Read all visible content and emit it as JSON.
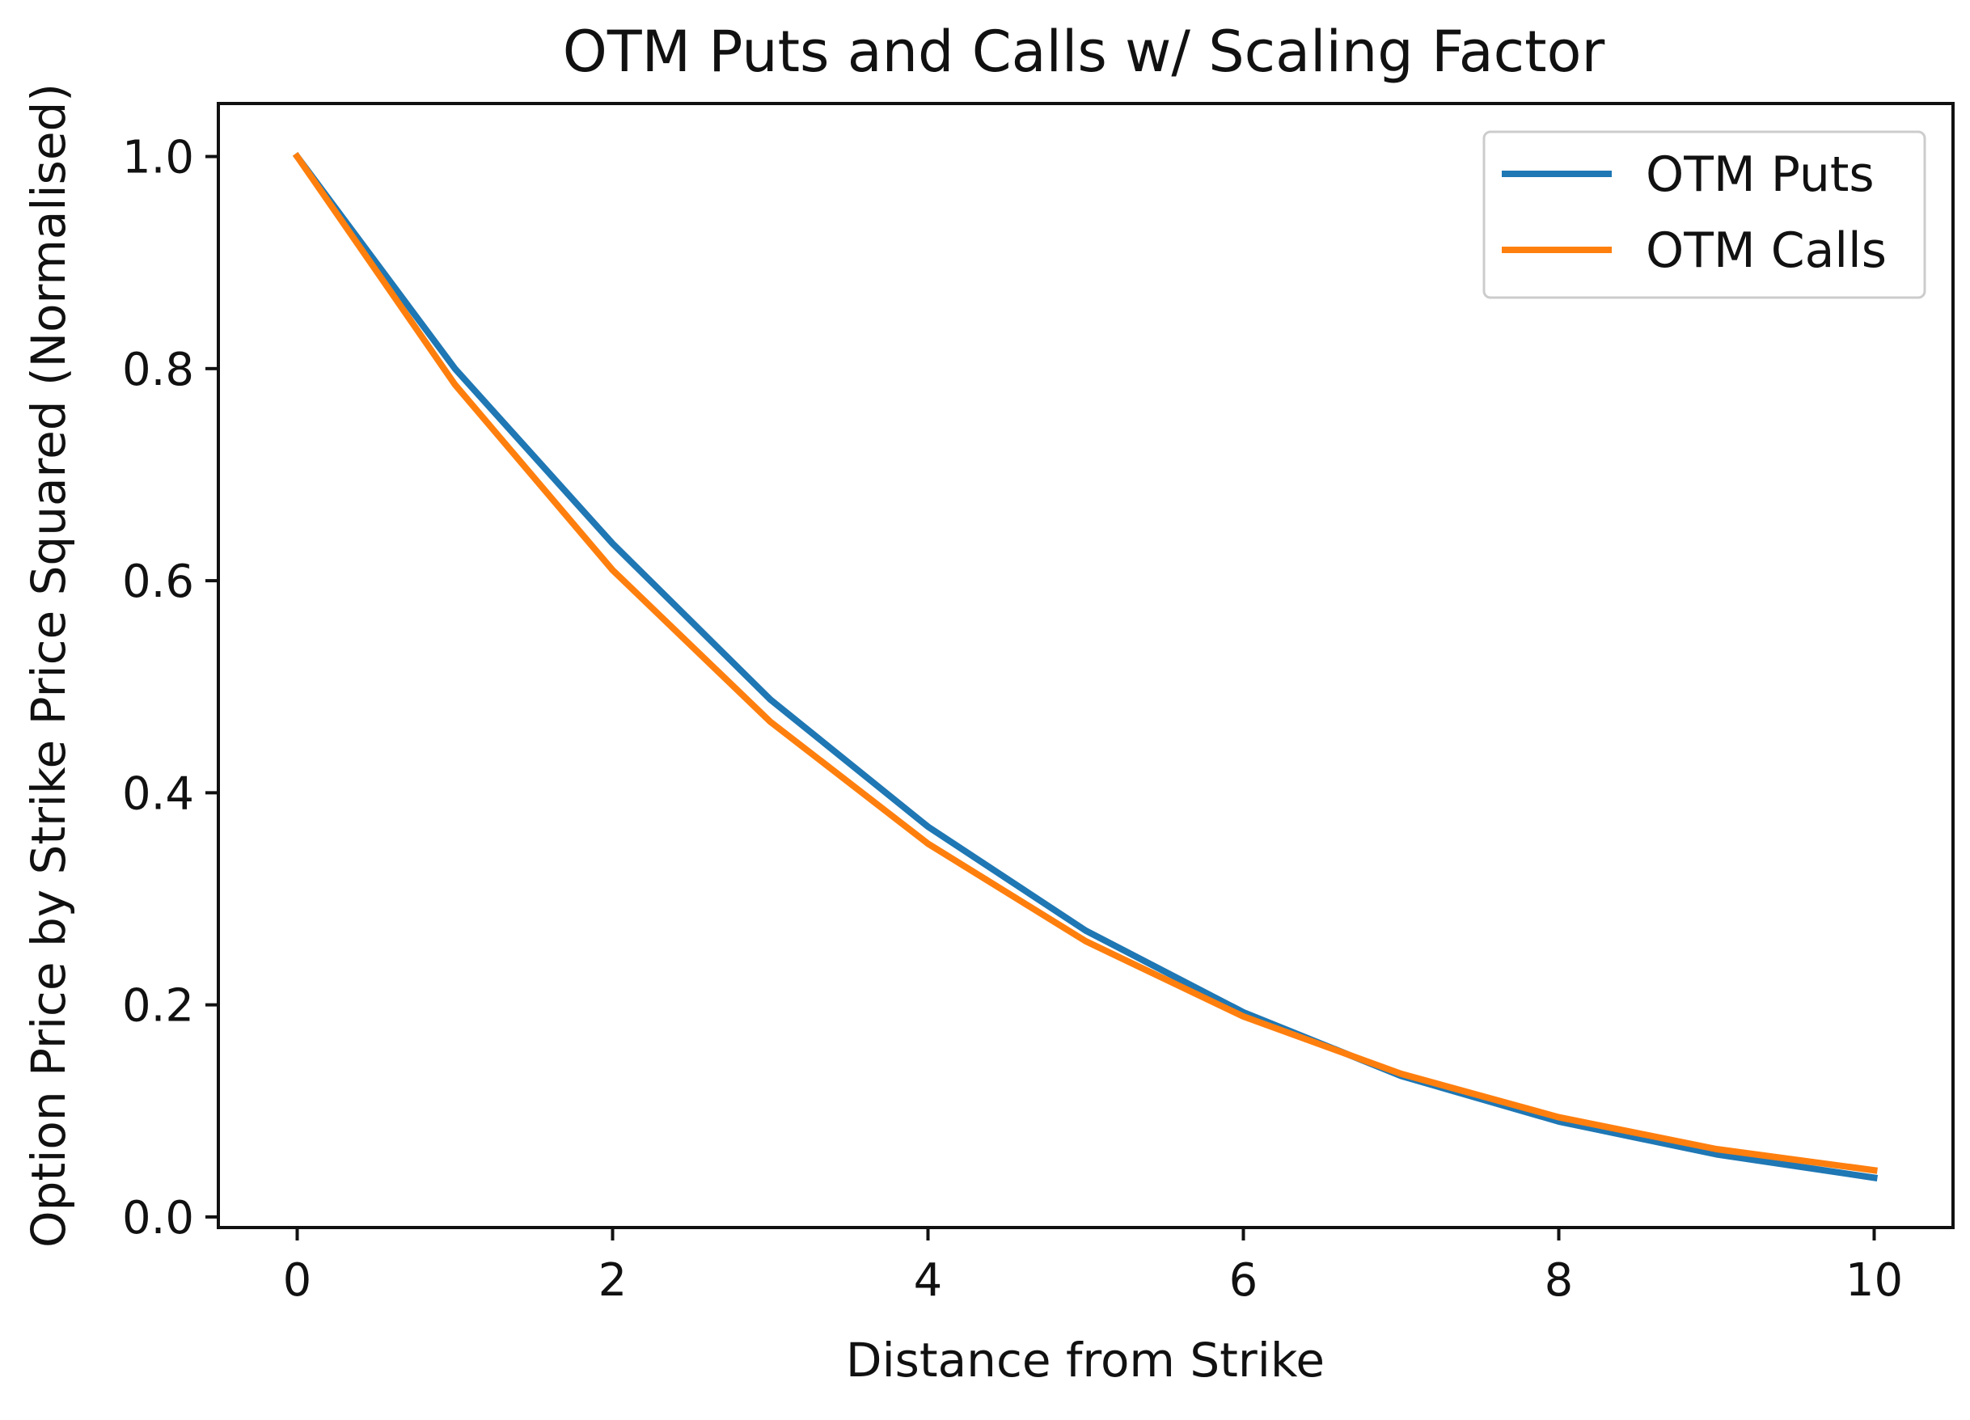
{
  "chart_data": {
    "type": "line",
    "title": "OTM Puts and Calls w/ Scaling Factor",
    "xlabel": "Distance from Strike",
    "ylabel": "Option Price by Strike Price Squared (Normalised)",
    "x": [
      0,
      1,
      2,
      3,
      4,
      5,
      6,
      7,
      8,
      9,
      10
    ],
    "xlim": [
      -0.5,
      10.5
    ],
    "ylim": [
      -0.01,
      1.05
    ],
    "xticks": [
      0,
      2,
      4,
      6,
      8,
      10
    ],
    "xtick_labels": [
      "0",
      "2",
      "4",
      "6",
      "8",
      "10"
    ],
    "yticks": [
      0.0,
      0.2,
      0.4,
      0.6,
      0.8,
      1.0
    ],
    "ytick_labels": [
      "0.0",
      "0.2",
      "0.4",
      "0.6",
      "0.8",
      "1.0"
    ],
    "grid": false,
    "legend_position": "top-right",
    "series": [
      {
        "name": "OTM Puts",
        "color": "#1f77b4",
        "values": [
          1.0,
          0.8,
          0.635,
          0.488,
          0.368,
          0.27,
          0.193,
          0.133,
          0.09,
          0.059,
          0.037
        ]
      },
      {
        "name": "OTM Calls",
        "color": "#ff7f0e",
        "values": [
          1.0,
          0.785,
          0.61,
          0.467,
          0.352,
          0.26,
          0.189,
          0.135,
          0.094,
          0.064,
          0.044
        ]
      }
    ]
  }
}
